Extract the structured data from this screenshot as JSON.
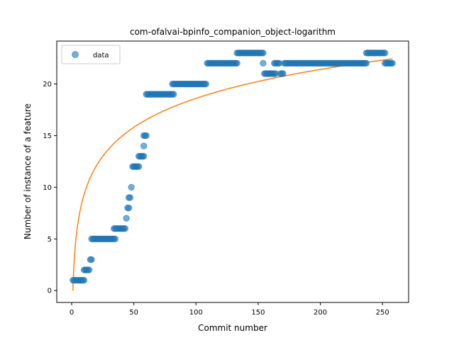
{
  "chart_data": {
    "type": "scatter",
    "title": "com-ofalvai-bpinfo_companion_object-logarithm",
    "xlabel": "Commit number",
    "ylabel": "Number of instance of a feature",
    "xlim": [
      -12,
      271
    ],
    "ylim": [
      -1.15,
      24.15
    ],
    "xticks": [
      0,
      50,
      100,
      150,
      200,
      250
    ],
    "yticks": [
      0,
      5,
      10,
      15,
      20
    ],
    "grid": false,
    "legend": {
      "placement": "top-left",
      "entries": [
        "data"
      ]
    },
    "colors": {
      "data": "#1f77b4",
      "fit": "#ff7f0e"
    },
    "series": [
      {
        "name": "data",
        "kind": "scatter",
        "runs": [
          {
            "x_start": 1,
            "x_end": 10,
            "y": 1
          },
          {
            "x_start": 10,
            "x_end": 14,
            "y": 2
          },
          {
            "x_start": 15,
            "x_end": 16,
            "y": 3
          },
          {
            "x_start": 16,
            "x_end": 35,
            "y": 5
          },
          {
            "x_start": 34,
            "x_end": 43,
            "y": 6
          },
          {
            "x_start": 44,
            "x_end": 44,
            "y": 7
          },
          {
            "x_start": 45,
            "x_end": 46,
            "y": 8
          },
          {
            "x_start": 46,
            "x_end": 47,
            "y": 9
          },
          {
            "x_start": 48,
            "x_end": 48,
            "y": 10
          },
          {
            "x_start": 49,
            "x_end": 54,
            "y": 12
          },
          {
            "x_start": 54,
            "x_end": 58,
            "y": 13
          },
          {
            "x_start": 58,
            "x_end": 58,
            "y": 14
          },
          {
            "x_start": 58,
            "x_end": 60,
            "y": 15
          },
          {
            "x_start": 60,
            "x_end": 82,
            "y": 19
          },
          {
            "x_start": 81,
            "x_end": 108,
            "y": 20
          },
          {
            "x_start": 109,
            "x_end": 133,
            "y": 22
          },
          {
            "x_start": 133,
            "x_end": 154,
            "y": 23
          },
          {
            "x_start": 154,
            "x_end": 154,
            "y": 22
          },
          {
            "x_start": 155,
            "x_end": 164,
            "y": 21
          },
          {
            "x_start": 163,
            "x_end": 167,
            "y": 22
          },
          {
            "x_start": 168,
            "x_end": 170,
            "y": 21
          },
          {
            "x_start": 171,
            "x_end": 237,
            "y": 22
          },
          {
            "x_start": 237,
            "x_end": 252,
            "y": 23
          },
          {
            "x_start": 252,
            "x_end": 258,
            "y": 22
          }
        ]
      },
      {
        "name": "",
        "kind": "line",
        "fit": {
          "form": "a*ln(x)",
          "a": 4.04,
          "x_start": 1,
          "x_end": 258
        }
      }
    ]
  }
}
